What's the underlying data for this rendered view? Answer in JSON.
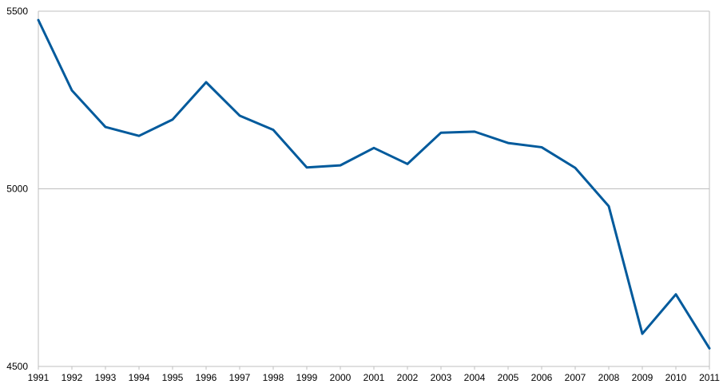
{
  "chart_data": {
    "type": "line",
    "title": "",
    "xlabel": "",
    "ylabel": "",
    "x": [
      "1991",
      "1992",
      "1993",
      "1994",
      "1995",
      "1996",
      "1997",
      "1998",
      "1999",
      "2000",
      "2001",
      "2002",
      "2003",
      "2004",
      "2005",
      "2006",
      "2007",
      "2008",
      "2009",
      "2010",
      "2011"
    ],
    "series": [
      {
        "values": [
          5475,
          5277,
          5174,
          5149,
          5195,
          5300,
          5206,
          5166,
          5060,
          5066,
          5115,
          5070,
          5158,
          5161,
          5129,
          5117,
          5059,
          4951,
          4592,
          4703,
          4551
        ]
      }
    ],
    "ylim": [
      4500,
      5500
    ],
    "yticks": [
      "4500",
      "5000",
      "5500"
    ],
    "grid": true,
    "line_color": "#005a9c"
  }
}
